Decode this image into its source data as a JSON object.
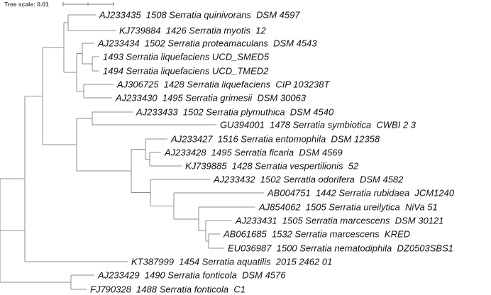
{
  "tree_scale": {
    "label": "Tree scale: 0.01"
  },
  "leaves": [
    {
      "accession": "AJ233435",
      "text": "1508 Serratia quinivorans  DSM 4597"
    },
    {
      "accession": "KJ739884",
      "text": "1426 Serratia myotis  12"
    },
    {
      "accession": "AJ233434",
      "text": "1502 Serratia proteamaculans  DSM 4543"
    },
    {
      "accession": "",
      "text": "1493 Serratia liquefaciens UCD_SMED5"
    },
    {
      "accession": "",
      "text": "1494 Serratia liquefaciens UCD_TMED2"
    },
    {
      "accession": "AJ306725",
      "text": "1428 Serratia liquefaciens  CIP 103238T"
    },
    {
      "accession": "AJ233430",
      "text": "1495 Serratia grimesii  DSM 30063"
    },
    {
      "accession": "AJ233433",
      "text": "1502 Serratia plymuthica  DSM 4540"
    },
    {
      "accession": "GU394001",
      "text": "1478 Serratia symbiotica  CWBI 2 3"
    },
    {
      "accession": "AJ233427",
      "text": "1516 Serratia entomophila  DSM 12358"
    },
    {
      "accession": "AJ233428",
      "text": "1495 Serratia ficaria  DSM 4569"
    },
    {
      "accession": "KJ739885",
      "text": "1428 Serratia vespertilionis  52"
    },
    {
      "accession": "AJ233432",
      "text": "1502 Serratia odorifera  DSM 4582"
    },
    {
      "accession": "AB004751",
      "text": "1442 Serratia rubidaea  JCM1240"
    },
    {
      "accession": "AJ854062",
      "text": "1505 Serratia ureilytica  NiVa 51"
    },
    {
      "accession": "AJ233431",
      "text": "1505 Serratia marcescens  DSM 30121"
    },
    {
      "accession": "AB061685",
      "text": "1532 Serratia marcescens  KRED"
    },
    {
      "accession": "EU036987",
      "text": "1500 Serratia nematodiphila  DZ0503SBS1"
    },
    {
      "accession": "KT387999",
      "text": "1454 Serratia aquatilis  2015 2462 01"
    },
    {
      "accession": "AJ233429",
      "text": "1490 Serratia fonticola  DSM 4576"
    },
    {
      "accession": "FJ790328",
      "text": "1488 Serratia fonticola  C1"
    }
  ],
  "colors": {
    "branch": "#8c8c8c",
    "label": "#111111",
    "background": "#ffffff"
  }
}
